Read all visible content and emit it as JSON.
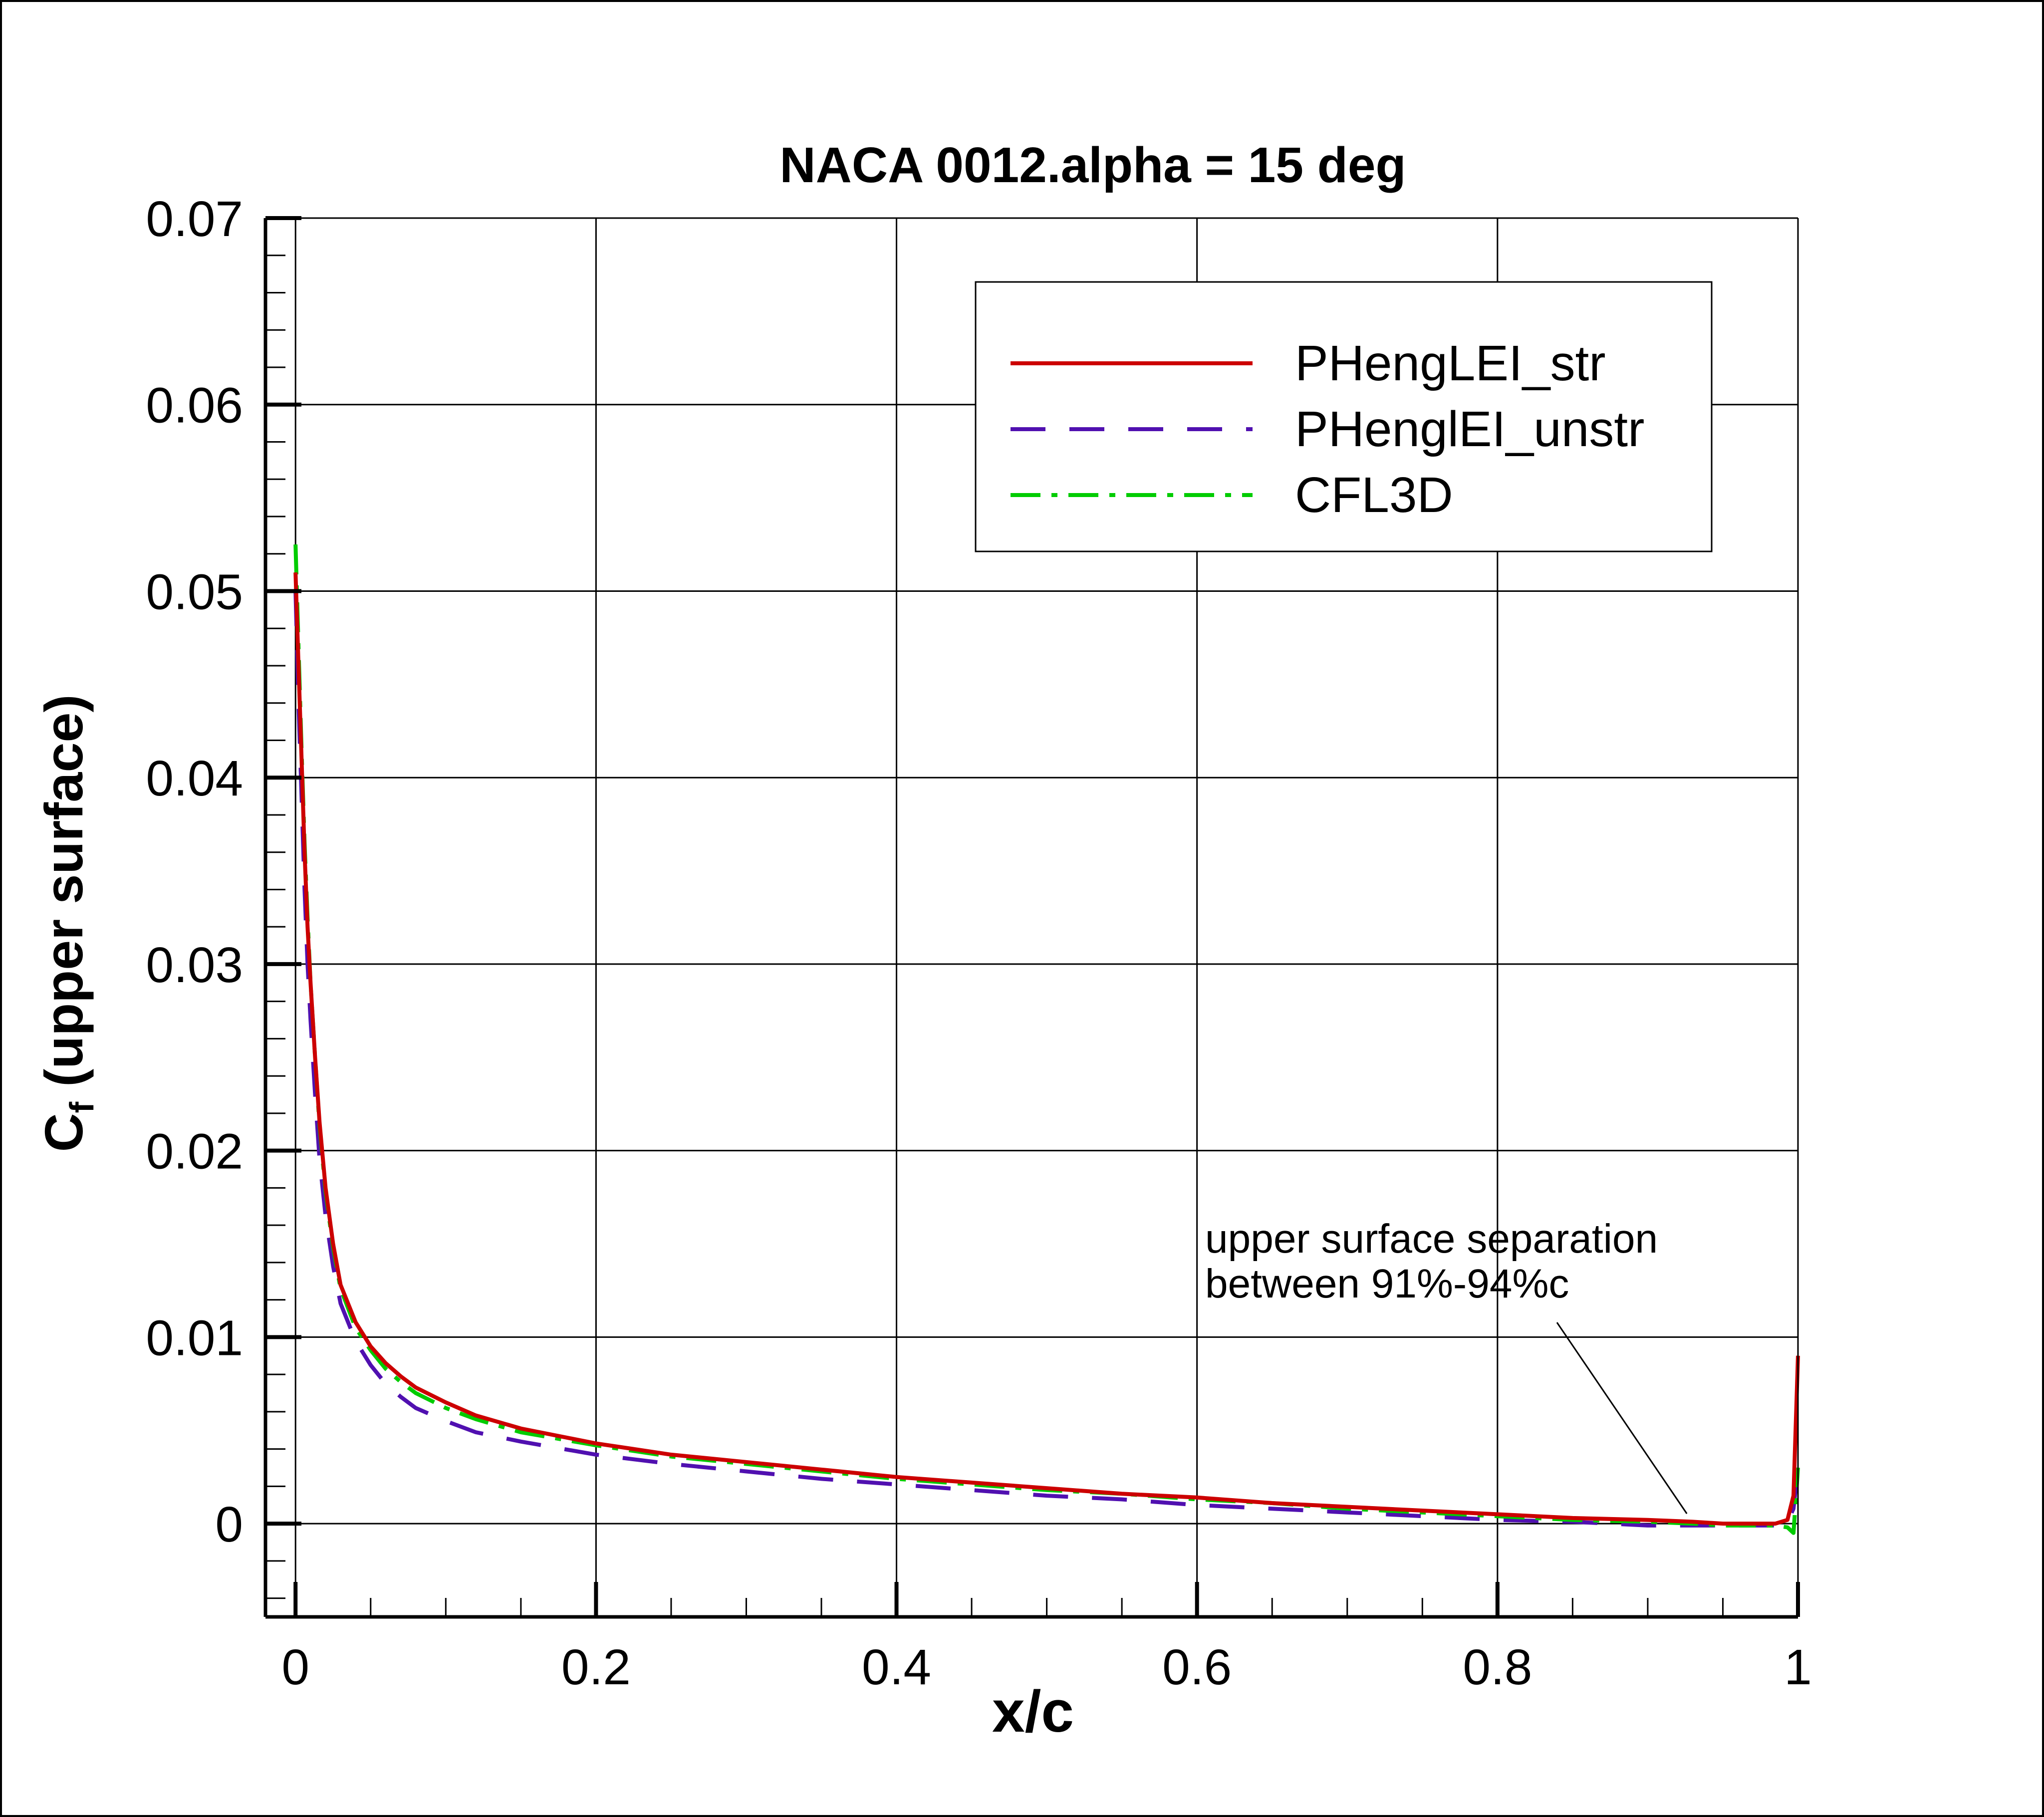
{
  "chart_data": {
    "type": "line",
    "title": "NACA 0012.alpha = 15 deg",
    "xlabel": "x/c",
    "ylabel_main": "C",
    "ylabel_sub": "f",
    "ylabel_rest": " (upper surface)",
    "xlim": [
      -0.02,
      1.0
    ],
    "ylim": [
      -0.005,
      0.07
    ],
    "xticks": [
      0,
      0.2,
      0.4,
      0.6,
      0.8,
      1.0
    ],
    "xtick_labels": [
      "0",
      "0.2",
      "0.4",
      "0.6",
      "0.8",
      "1"
    ],
    "yticks": [
      0,
      0.01,
      0.02,
      0.03,
      0.04,
      0.05,
      0.06,
      0.07
    ],
    "ytick_labels": [
      "0",
      "0.01",
      "0.02",
      "0.03",
      "0.04",
      "0.05",
      "0.06",
      "0.07"
    ],
    "grid": true,
    "legend_position": "top-right",
    "annotation": {
      "line1": "upper surface separation",
      "line2": "between 91%-94%c",
      "target": [
        0.93,
        0.0
      ]
    },
    "series": [
      {
        "name": "PHengLEI_str",
        "color": "#cc0000",
        "dash": "solid",
        "x": [
          0.0,
          0.002,
          0.004,
          0.006,
          0.008,
          0.01,
          0.013,
          0.016,
          0.02,
          0.025,
          0.03,
          0.04,
          0.05,
          0.06,
          0.07,
          0.08,
          0.1,
          0.12,
          0.15,
          0.2,
          0.25,
          0.3,
          0.35,
          0.4,
          0.45,
          0.5,
          0.55,
          0.6,
          0.65,
          0.7,
          0.75,
          0.8,
          0.85,
          0.9,
          0.93,
          0.95,
          0.97,
          0.985,
          0.993,
          0.997,
          1.0
        ],
        "y": [
          0.051,
          0.046,
          0.041,
          0.036,
          0.032,
          0.029,
          0.025,
          0.0215,
          0.018,
          0.015,
          0.0128,
          0.0108,
          0.0095,
          0.0086,
          0.0079,
          0.0073,
          0.0065,
          0.0058,
          0.0051,
          0.0043,
          0.0037,
          0.0033,
          0.0029,
          0.0025,
          0.0022,
          0.0019,
          0.0016,
          0.0014,
          0.0011,
          0.0009,
          0.0007,
          0.0005,
          0.0003,
          0.0002,
          0.0001,
          0.0,
          0.0,
          0.0,
          0.0002,
          0.0015,
          0.009
        ]
      },
      {
        "name": "PHenglEI_unstr",
        "color": "#5010b0",
        "dash": "dashed",
        "x": [
          0.0,
          0.002,
          0.004,
          0.006,
          0.008,
          0.01,
          0.013,
          0.016,
          0.02,
          0.025,
          0.03,
          0.04,
          0.05,
          0.06,
          0.07,
          0.08,
          0.1,
          0.12,
          0.15,
          0.2,
          0.25,
          0.3,
          0.35,
          0.4,
          0.45,
          0.5,
          0.55,
          0.6,
          0.65,
          0.7,
          0.75,
          0.8,
          0.85,
          0.9,
          0.93,
          0.95,
          0.97,
          0.985,
          0.993,
          0.997,
          1.0
        ],
        "y": [
          0.05,
          0.044,
          0.039,
          0.034,
          0.03,
          0.027,
          0.023,
          0.0195,
          0.0165,
          0.0138,
          0.0118,
          0.0098,
          0.0085,
          0.0075,
          0.0068,
          0.0062,
          0.0055,
          0.0049,
          0.0044,
          0.0037,
          0.0032,
          0.0028,
          0.0024,
          0.0021,
          0.0018,
          0.0015,
          0.0013,
          0.001,
          0.0008,
          0.0006,
          0.0004,
          0.0002,
          0.0001,
          -0.0001,
          -0.0001,
          -0.0001,
          -0.0001,
          -0.0001,
          0.0001,
          0.0008,
          0.003
        ]
      },
      {
        "name": "CFL3D",
        "color": "#00cc00",
        "dash": "dashdot",
        "x": [
          0.0,
          0.002,
          0.004,
          0.006,
          0.008,
          0.01,
          0.013,
          0.016,
          0.02,
          0.025,
          0.03,
          0.04,
          0.05,
          0.06,
          0.07,
          0.08,
          0.1,
          0.12,
          0.15,
          0.2,
          0.25,
          0.3,
          0.35,
          0.4,
          0.45,
          0.5,
          0.55,
          0.6,
          0.65,
          0.7,
          0.75,
          0.8,
          0.85,
          0.9,
          0.93,
          0.95,
          0.97,
          0.985,
          0.993,
          0.997,
          1.0
        ],
        "y": [
          0.0525,
          0.047,
          0.0415,
          0.0365,
          0.0325,
          0.029,
          0.025,
          0.0213,
          0.0178,
          0.0148,
          0.0126,
          0.0105,
          0.0093,
          0.0083,
          0.0076,
          0.007,
          0.0062,
          0.0056,
          0.0049,
          0.0042,
          0.0036,
          0.0032,
          0.0028,
          0.0024,
          0.0021,
          0.0018,
          0.0016,
          0.0013,
          0.0011,
          0.0008,
          0.0006,
          0.0004,
          0.0002,
          0.0001,
          0.0,
          -0.0001,
          -0.0001,
          -0.0001,
          -0.0002,
          -0.0005,
          0.003
        ]
      }
    ]
  }
}
